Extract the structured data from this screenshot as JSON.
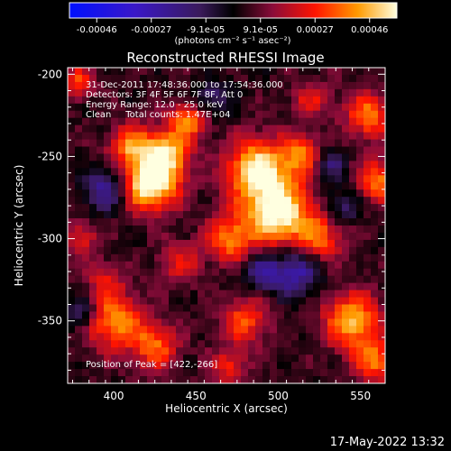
{
  "chart_data": {
    "type": "heatmap",
    "title": "Reconstructed RHESSI Image",
    "xlabel": "Heliocentric X (arcsec)",
    "ylabel": "Heliocentric Y (arcsec)",
    "xlim": [
      372,
      565
    ],
    "ylim": [
      -388,
      -196
    ],
    "x_ticks": [
      400,
      450,
      500,
      550
    ],
    "y_ticks": [
      -200,
      -250,
      -300,
      -350
    ],
    "colorbar": {
      "ticks": [
        "-0.00046",
        "-0.00027",
        "-9.1e-05",
        "9.1e-05",
        "0.00027",
        "0.00046"
      ],
      "range": [
        -0.00046,
        0.00046
      ],
      "unit_label": "(photons cm⁻² s⁻¹ asec⁻²)"
    },
    "annotations": [
      "31-Dec-2011 17:48:36.000 to 17:54:36.000",
      "Detectors: 3F 4F 5F 6F 7F 8F, Att 0",
      "Energy Range: 12.0 - 25.0 keV",
      "Clean     Total counts: 1.47E+04"
    ],
    "peak_text": "Position of Peak = [422,-266]",
    "blobs": [
      {
        "x": 422,
        "y": -266,
        "amp": 1.0,
        "r": 12
      },
      {
        "x": 432,
        "y": -248,
        "amp": 0.7,
        "r": 10
      },
      {
        "x": 410,
        "y": -243,
        "amp": 0.55,
        "r": 9
      },
      {
        "x": 445,
        "y": -228,
        "amp": 0.6,
        "r": 8
      },
      {
        "x": 487,
        "y": -258,
        "amp": 0.9,
        "r": 13
      },
      {
        "x": 500,
        "y": -285,
        "amp": 0.95,
        "r": 14
      },
      {
        "x": 470,
        "y": -300,
        "amp": 0.6,
        "r": 10
      },
      {
        "x": 515,
        "y": -250,
        "amp": 0.6,
        "r": 9
      },
      {
        "x": 525,
        "y": -300,
        "amp": 0.5,
        "r": 10
      },
      {
        "x": 555,
        "y": -225,
        "amp": 0.6,
        "r": 10
      },
      {
        "x": 560,
        "y": -265,
        "amp": 0.6,
        "r": 9
      },
      {
        "x": 378,
        "y": -205,
        "amp": 0.5,
        "r": 7
      },
      {
        "x": 400,
        "y": -350,
        "amp": 0.65,
        "r": 12
      },
      {
        "x": 425,
        "y": -365,
        "amp": 0.55,
        "r": 10
      },
      {
        "x": 480,
        "y": -350,
        "amp": 0.5,
        "r": 10
      },
      {
        "x": 470,
        "y": -378,
        "amp": 0.4,
        "r": 8
      },
      {
        "x": 545,
        "y": -350,
        "amp": 0.75,
        "r": 12
      },
      {
        "x": 560,
        "y": -375,
        "amp": 0.6,
        "r": 9
      },
      {
        "x": 440,
        "y": -315,
        "amp": 0.35,
        "r": 9
      },
      {
        "x": 380,
        "y": -300,
        "amp": 0.35,
        "r": 8
      },
      {
        "x": 395,
        "y": -325,
        "amp": 0.3,
        "r": 8
      },
      {
        "x": 520,
        "y": -215,
        "amp": 0.35,
        "r": 8
      },
      {
        "x": 395,
        "y": -270,
        "amp": -0.55,
        "r": 9
      },
      {
        "x": 510,
        "y": -320,
        "amp": -0.6,
        "r": 10
      },
      {
        "x": 490,
        "y": -320,
        "amp": -0.45,
        "r": 8
      },
      {
        "x": 530,
        "y": -255,
        "amp": -0.4,
        "r": 8
      },
      {
        "x": 460,
        "y": -215,
        "amp": -0.35,
        "r": 8
      },
      {
        "x": 540,
        "y": -280,
        "amp": -0.35,
        "r": 7
      },
      {
        "x": 380,
        "y": -345,
        "amp": -0.4,
        "r": 7
      }
    ]
  },
  "footer": {
    "timestamp": "17-May-2022 13:32"
  }
}
